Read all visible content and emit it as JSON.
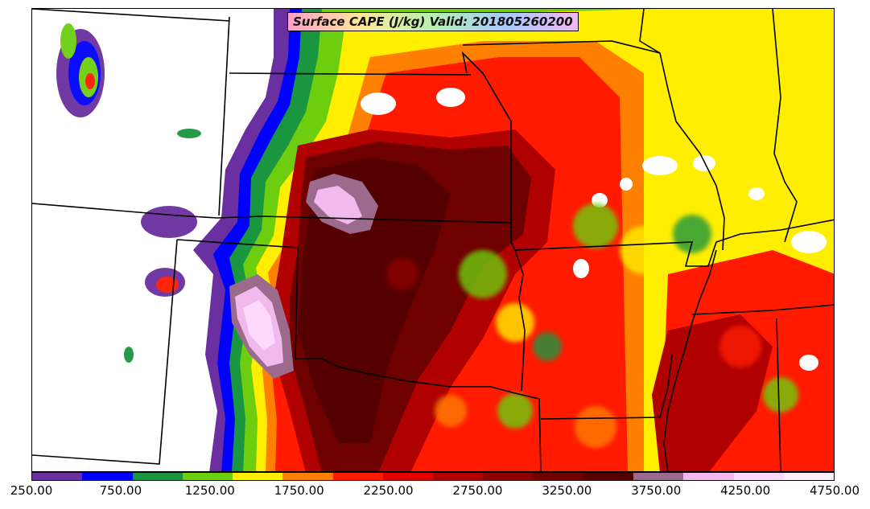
{
  "title": "Surface CAPE (J/kg) Valid: 201805260200",
  "colorbar": {
    "colors": [
      "#6a2fa0",
      "#0000ff",
      "#1a9641",
      "#6dce0f",
      "#ffee00",
      "#ff7f00",
      "#ff1a00",
      "#e20000",
      "#b00000",
      "#8b0000",
      "#6e0000",
      "#540000",
      "#9b6a8c",
      "#f2b9ec",
      "#ffd9fb",
      "#ffeeff"
    ],
    "tick_labels": [
      "250.00",
      "750.00",
      "1250.00",
      "1750.00",
      "2250.00",
      "2750.00",
      "3250.00",
      "3750.00",
      "4250.00",
      "4750.00"
    ]
  }
}
